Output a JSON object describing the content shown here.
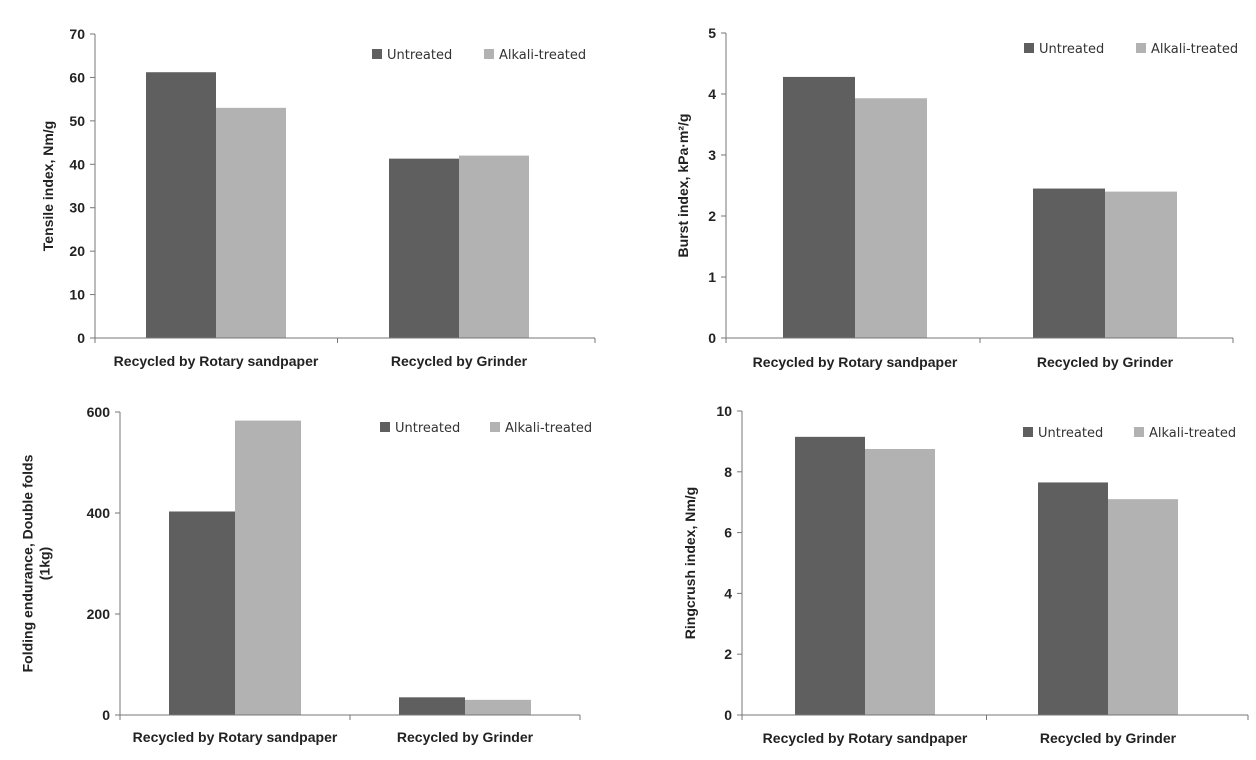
{
  "colors": {
    "untreated": "#5f5f5f",
    "alkali": "#b2b2b2"
  },
  "legend": [
    "Untreated",
    "Alkali-treated"
  ],
  "chart_data": [
    {
      "type": "bar",
      "categories": [
        "Recycled by Rotary sandpaper",
        "Recycled by Grinder"
      ],
      "series": [
        {
          "name": "Untreated",
          "values": [
            61.2,
            41.3
          ]
        },
        {
          "name": "Alkali-treated",
          "values": [
            53.0,
            42.0
          ]
        }
      ],
      "ylabel": "Tensile index, Nm/g",
      "ylim": [
        0,
        70
      ],
      "yticks": [
        0,
        10,
        20,
        30,
        40,
        50,
        60,
        70
      ],
      "legend_position": "top-right",
      "grid": false
    },
    {
      "type": "bar",
      "categories": [
        "Recycled by Rotary sandpaper",
        "Recycled by Grinder"
      ],
      "series": [
        {
          "name": "Untreated",
          "values": [
            4.28,
            2.45
          ]
        },
        {
          "name": "Alkali-treated",
          "values": [
            3.93,
            2.4
          ]
        }
      ],
      "ylabel": "Burst index, kPa·m²/g",
      "ylim": [
        0,
        5
      ],
      "yticks": [
        0,
        1,
        2,
        3,
        4,
        5
      ],
      "legend_position": "top-right",
      "grid": false
    },
    {
      "type": "bar",
      "categories": [
        "Recycled by Rotary sandpaper",
        "Recycled by Grinder"
      ],
      "series": [
        {
          "name": "Untreated",
          "values": [
            403,
            35
          ]
        },
        {
          "name": "Alkali-treated",
          "values": [
            583,
            30
          ]
        }
      ],
      "ylabel": [
        "Folding endurance, Double folds",
        "(1kg)"
      ],
      "ylim": [
        0,
        600
      ],
      "yticks": [
        0,
        200,
        400,
        600
      ],
      "legend_position": "top-right",
      "grid": false
    },
    {
      "type": "bar",
      "categories": [
        "Recycled by Rotary sandpaper",
        "Recycled by Grinder"
      ],
      "series": [
        {
          "name": "Untreated",
          "values": [
            9.15,
            7.65
          ]
        },
        {
          "name": "Alkali-treated",
          "values": [
            8.75,
            7.1
          ]
        }
      ],
      "ylabel": "Ringcrush index, Nm/g",
      "ylim": [
        0,
        10
      ],
      "yticks": [
        0,
        2,
        4,
        6,
        8,
        10
      ],
      "legend_position": "top-right",
      "grid": false
    }
  ]
}
